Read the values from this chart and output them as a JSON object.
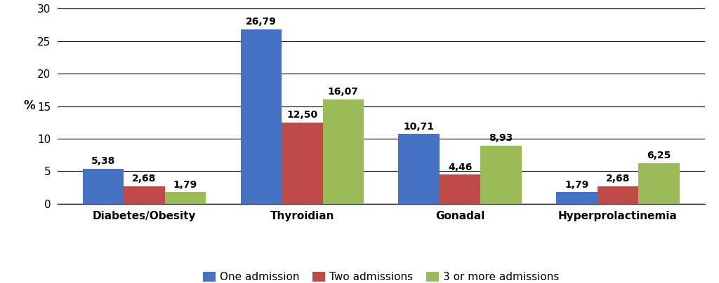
{
  "categories": [
    "Diabetes/Obesity",
    "Thyroidian",
    "Gonadal",
    "Hyperprolactinemia"
  ],
  "series": [
    {
      "label": "One admission",
      "values": [
        5.38,
        26.79,
        10.71,
        1.79
      ],
      "color": "#4472C4"
    },
    {
      "label": "Two admissions",
      "values": [
        2.68,
        12.5,
        4.46,
        2.68
      ],
      "color": "#BE4B48"
    },
    {
      "label": "3 or more admissions",
      "values": [
        1.79,
        16.07,
        8.93,
        6.25
      ],
      "color": "#9BBB59"
    }
  ],
  "ylabel": "%",
  "ylim": [
    0,
    30
  ],
  "yticks": [
    0,
    5,
    10,
    15,
    20,
    25,
    30
  ],
  "bar_width": 0.26,
  "background_color": "#FFFFFF",
  "grid_color": "#000000",
  "label_fontsize": 12,
  "tick_fontsize": 11,
  "legend_fontsize": 11,
  "value_fontsize": 10
}
